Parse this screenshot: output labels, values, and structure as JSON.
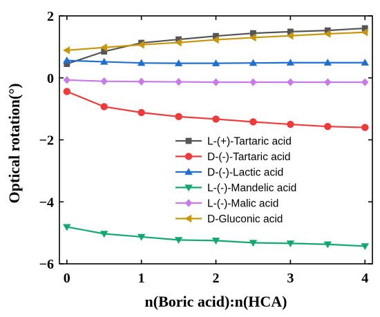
{
  "chart_data": {
    "type": "line",
    "xlabel": "n(Boric acid):n(HCA)",
    "ylabel": "Optical rotation(°)",
    "xlim": [
      -0.1,
      4.1
    ],
    "ylim": [
      -6,
      2
    ],
    "xticks": [
      0,
      1,
      2,
      3,
      4
    ],
    "xtick_labels": [
      "0",
      "1",
      "2",
      "3",
      "4"
    ],
    "yticks": [
      -6,
      -4,
      -2,
      0,
      2
    ],
    "ytick_labels": [
      "−6",
      "−4",
      "−2",
      "0",
      "2"
    ],
    "grid": false,
    "legend_position": "center-right",
    "x": [
      0,
      0.5,
      1,
      1.5,
      2,
      2.5,
      3,
      3.5,
      4
    ],
    "series": [
      {
        "name": "L-(+)-Tartaric acid",
        "color": "#555555",
        "marker": "square",
        "values": [
          0.45,
          0.85,
          1.13,
          1.24,
          1.35,
          1.44,
          1.49,
          1.53,
          1.6
        ]
      },
      {
        "name": "D-(-)-Tartaric acid",
        "color": "#f03a3a",
        "marker": "circle",
        "values": [
          -0.44,
          -0.93,
          -1.12,
          -1.25,
          -1.33,
          -1.42,
          -1.5,
          -1.57,
          -1.6
        ]
      },
      {
        "name": "D-(-)-Lactic acid",
        "color": "#1f6fd1",
        "marker": "triangle-up",
        "values": [
          0.56,
          0.52,
          0.48,
          0.47,
          0.47,
          0.48,
          0.49,
          0.49,
          0.49
        ]
      },
      {
        "name": "L-(-)-Mandelic acid",
        "color": "#12a870",
        "marker": "triangle-down",
        "values": [
          -4.81,
          -5.03,
          -5.13,
          -5.23,
          -5.25,
          -5.32,
          -5.34,
          -5.37,
          -5.43
        ]
      },
      {
        "name": "L-(-)-Malic acid",
        "color": "#c77be8",
        "marker": "diamond",
        "values": [
          -0.07,
          -0.11,
          -0.12,
          -0.13,
          -0.14,
          -0.14,
          -0.14,
          -0.14,
          -0.14
        ]
      },
      {
        "name": "D-Gluconic acid",
        "color": "#c8960a",
        "marker": "triangle-left",
        "values": [
          0.89,
          0.98,
          1.07,
          1.14,
          1.23,
          1.3,
          1.36,
          1.42,
          1.47
        ]
      }
    ]
  }
}
